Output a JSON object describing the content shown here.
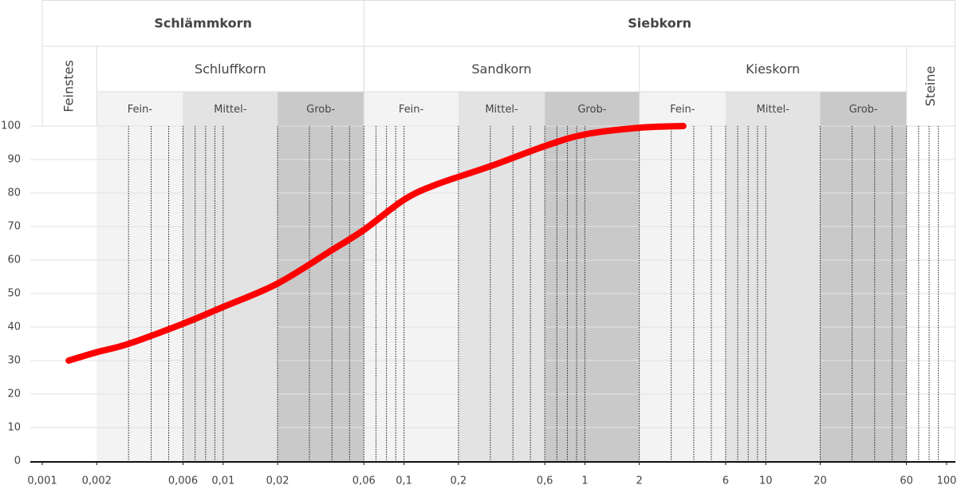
{
  "chart_data": {
    "type": "line",
    "x_scale": "log",
    "xlim": [
      0.001,
      100
    ],
    "ylim": [
      0,
      100
    ],
    "yticks": [
      0,
      10,
      20,
      30,
      40,
      50,
      60,
      70,
      80,
      90,
      100
    ],
    "xticks": [
      {
        "value": 0.001,
        "label": "0,001"
      },
      {
        "value": 0.002,
        "label": "0,002"
      },
      {
        "value": 0.006,
        "label": "0,006"
      },
      {
        "value": 0.01,
        "label": "0,01"
      },
      {
        "value": 0.02,
        "label": "0,02"
      },
      {
        "value": 0.06,
        "label": "0,06"
      },
      {
        "value": 0.1,
        "label": "0,1"
      },
      {
        "value": 0.2,
        "label": "0,2"
      },
      {
        "value": 0.6,
        "label": "0,6"
      },
      1,
      2,
      6,
      10,
      20,
      60,
      100
    ],
    "grid": true,
    "minor_grid": true,
    "groups": [
      {
        "label": "Schlämmkorn",
        "from": 0.001,
        "to": 0.06
      },
      {
        "label": "Siebkorn",
        "from": 0.06,
        "to": 100
      }
    ],
    "classes": [
      {
        "label": "Feinstes",
        "from": 0.001,
        "to": 0.002
      },
      {
        "label": "Schluffkorn",
        "from": 0.002,
        "to": 0.06
      },
      {
        "label": "Sandkorn",
        "from": 0.06,
        "to": 2
      },
      {
        "label": "Kieskorn",
        "from": 2,
        "to": 60
      },
      {
        "label": "Steine",
        "from": 60,
        "to": 100
      }
    ],
    "zones": [
      {
        "label": "Fein-",
        "from": 0.002,
        "to": 0.006,
        "color": "#f3f3f3"
      },
      {
        "label": "Mittel-",
        "from": 0.006,
        "to": 0.02,
        "color": "#e3e3e3"
      },
      {
        "label": "Grob-",
        "from": 0.02,
        "to": 0.06,
        "color": "#c9c9c9"
      },
      {
        "label": "Fein-",
        "from": 0.06,
        "to": 0.2,
        "color": "#f3f3f3"
      },
      {
        "label": "Mittel-",
        "from": 0.2,
        "to": 0.6,
        "color": "#e3e3e3"
      },
      {
        "label": "Grob-",
        "from": 0.6,
        "to": 2,
        "color": "#c9c9c9"
      },
      {
        "label": "Fein-",
        "from": 2,
        "to": 6,
        "color": "#f3f3f3"
      },
      {
        "label": "Mittel-",
        "from": 6,
        "to": 20,
        "color": "#e3e3e3"
      },
      {
        "label": "Grob-",
        "from": 20,
        "to": 60,
        "color": "#c9c9c9"
      }
    ],
    "series": [
      {
        "color": "#ff0000",
        "x": [
          0.0014,
          0.002,
          0.003,
          0.006,
          0.01,
          0.02,
          0.04,
          0.06,
          0.1,
          0.15,
          0.3,
          0.6,
          1,
          2,
          3.5
        ],
        "values": [
          30,
          32.5,
          35,
          41,
          46,
          53,
          63,
          69,
          78,
          82.5,
          88,
          94,
          97.5,
          99.5,
          100
        ]
      }
    ]
  }
}
